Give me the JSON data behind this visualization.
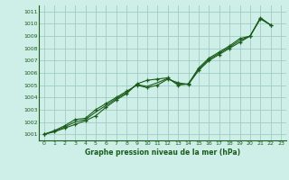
{
  "title": "Graphe pression niveau de la mer (hPa)",
  "bg_color": "#ceeee8",
  "grid_color": "#a0ccc4",
  "line_color": "#1a5c1a",
  "xlim": [
    -0.5,
    23.5
  ],
  "ylim": [
    1000.5,
    1011.5
  ],
  "xticks": [
    0,
    1,
    2,
    3,
    4,
    5,
    6,
    7,
    8,
    9,
    10,
    11,
    12,
    13,
    14,
    15,
    16,
    17,
    18,
    19,
    20,
    21,
    22,
    23
  ],
  "yticks": [
    1001,
    1002,
    1003,
    1004,
    1005,
    1006,
    1007,
    1008,
    1009,
    1010,
    1011
  ],
  "series1": [
    [
      0,
      1001.0
    ],
    [
      1,
      1001.2
    ],
    [
      2,
      1001.5
    ],
    [
      3,
      1001.8
    ],
    [
      4,
      1002.1
    ],
    [
      5,
      1002.5
    ],
    [
      6,
      1003.2
    ],
    [
      7,
      1003.8
    ],
    [
      8,
      1004.3
    ],
    [
      9,
      1005.1
    ],
    [
      10,
      1005.4
    ],
    [
      11,
      1005.5
    ],
    [
      12,
      1005.6
    ],
    [
      13,
      1005.0
    ],
    [
      14,
      1005.1
    ],
    [
      15,
      1006.4
    ],
    [
      16,
      1007.2
    ],
    [
      17,
      1007.7
    ],
    [
      18,
      1008.2
    ],
    [
      19,
      1008.8
    ],
    [
      20,
      1009.0
    ],
    [
      21,
      1010.4
    ],
    [
      22,
      1009.9
    ]
  ],
  "series2": [
    [
      0,
      1001.0
    ],
    [
      1,
      1001.3
    ],
    [
      2,
      1001.7
    ],
    [
      3,
      1002.2
    ],
    [
      4,
      1002.3
    ],
    [
      5,
      1003.0
    ],
    [
      6,
      1003.5
    ],
    [
      7,
      1004.0
    ],
    [
      8,
      1004.5
    ],
    [
      9,
      1005.0
    ],
    [
      10,
      1004.8
    ],
    [
      11,
      1005.0
    ],
    [
      12,
      1005.5
    ],
    [
      13,
      1005.2
    ],
    [
      14,
      1005.05
    ],
    [
      15,
      1006.2
    ],
    [
      16,
      1007.0
    ],
    [
      17,
      1007.5
    ],
    [
      18,
      1008.0
    ],
    [
      19,
      1008.5
    ],
    [
      20,
      1009.0
    ],
    [
      21,
      1010.5
    ],
    [
      22,
      1009.9
    ]
  ],
  "series3": [
    [
      0,
      1001.0
    ],
    [
      1,
      1001.25
    ],
    [
      2,
      1001.6
    ],
    [
      3,
      1002.0
    ],
    [
      4,
      1002.2
    ],
    [
      5,
      1002.8
    ],
    [
      6,
      1003.35
    ],
    [
      7,
      1003.9
    ],
    [
      8,
      1004.4
    ],
    [
      9,
      1005.05
    ],
    [
      10,
      1004.9
    ],
    [
      11,
      1005.2
    ],
    [
      12,
      1005.55
    ],
    [
      13,
      1005.1
    ],
    [
      14,
      1005.1
    ],
    [
      15,
      1006.3
    ],
    [
      16,
      1007.1
    ],
    [
      17,
      1007.6
    ],
    [
      18,
      1008.1
    ],
    [
      19,
      1008.65
    ],
    [
      20,
      1009.0
    ],
    [
      21,
      1010.45
    ],
    [
      22,
      1009.9
    ]
  ]
}
